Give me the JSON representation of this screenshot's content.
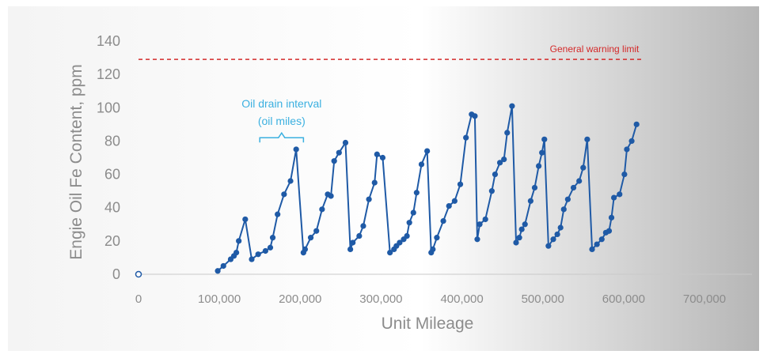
{
  "chart_data": {
    "type": "scatter",
    "title": "",
    "xlabel": "Unit Mileage",
    "ylabel": "Engie Oil Fe Content, ppm",
    "xlim": [
      0,
      700000
    ],
    "ylim": [
      0,
      140
    ],
    "x_ticks": [
      0,
      100000,
      200000,
      300000,
      400000,
      500000,
      600000,
      700000
    ],
    "x_tick_labels": [
      "0",
      "100,000",
      "200,000",
      "300,000",
      "400,000",
      "500,000",
      "600,000",
      "700,000"
    ],
    "y_ticks": [
      0,
      20,
      40,
      60,
      80,
      100,
      120,
      140
    ],
    "y_tick_labels": [
      "0",
      "20",
      "40",
      "60",
      "80",
      "100",
      "120",
      "140"
    ],
    "grid": false,
    "legend": "none",
    "colors": {
      "series": "#1f5aa6",
      "warning_line": "#d42a2a",
      "annotation": "#3bb0e0",
      "axis_text": "#8c8c8c"
    },
    "warning_limit": {
      "label": "General warning limit",
      "y": 129
    },
    "annotation": {
      "line1": "Oil drain interval",
      "line2": "(oil miles)",
      "x_start": 150000,
      "x_end": 204000
    },
    "origin_point": {
      "x": 0,
      "y": 0
    },
    "series": [
      {
        "x": [
          98000,
          105000,
          114000,
          118000,
          121000,
          124000,
          132000,
          140000,
          148000,
          157000,
          163000,
          166000,
          172000,
          180000,
          188000,
          195000,
          204000,
          206000,
          213000,
          220000,
          227000,
          234000,
          238000,
          242000,
          248000,
          256000,
          262000,
          265000,
          273000,
          278000,
          285000,
          292000,
          295000,
          302000,
          311000,
          316000,
          319000,
          323000,
          328000,
          332000,
          335000,
          340000,
          344000,
          350000,
          357000,
          362000,
          364000,
          369000,
          377000,
          384000,
          391000,
          398000,
          405000,
          412000,
          416000,
          419000,
          422000,
          429000,
          437000,
          441000,
          447000,
          452000,
          456000,
          462000,
          467000,
          471000,
          474000,
          478000,
          485000,
          490000,
          495000,
          499000,
          502000,
          507000,
          513000,
          518000,
          522000,
          526000,
          531000,
          538000,
          545000,
          550000,
          555000,
          561000,
          567000,
          573000,
          578000,
          582000,
          585000,
          588000,
          595000,
          601000,
          604000,
          610000,
          616000
        ],
        "y": [
          2,
          5,
          9,
          11,
          13,
          20,
          33,
          9,
          12,
          14,
          16,
          22,
          36,
          48,
          56,
          75,
          13,
          15,
          22,
          26,
          39,
          48,
          47,
          68,
          73,
          79,
          15,
          19,
          23,
          29,
          45,
          55,
          72,
          70,
          13,
          15,
          17,
          19,
          21,
          23,
          31,
          37,
          49,
          66,
          74,
          13,
          15,
          22,
          32,
          41,
          44,
          54,
          82,
          96,
          95,
          21,
          30,
          33,
          50,
          60,
          67,
          69,
          85,
          101,
          19,
          22,
          27,
          30,
          44,
          52,
          65,
          73,
          81,
          17,
          21,
          24,
          28,
          39,
          45,
          52,
          56,
          64,
          81,
          15,
          18,
          21,
          25,
          26,
          34,
          46,
          48,
          60,
          75,
          80,
          90
        ]
      }
    ]
  }
}
